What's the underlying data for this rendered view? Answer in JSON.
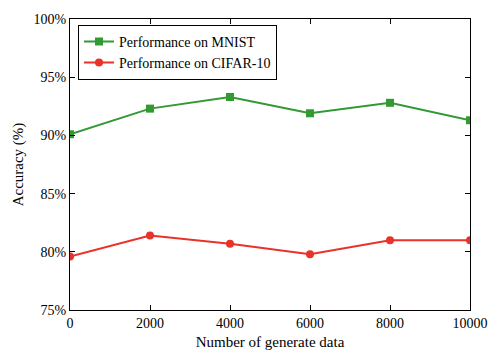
{
  "chart_data": {
    "type": "line",
    "x_label": "Number of generate data",
    "y_label": "Accuracy (%)",
    "x": [
      0,
      2000,
      4000,
      6000,
      8000,
      10000
    ],
    "series": [
      {
        "name": "Performance on MNIST",
        "color": "#339933",
        "marker": "square",
        "line_style": "solid",
        "values": [
          90.1,
          92.3,
          93.3,
          91.9,
          92.8,
          91.3
        ]
      },
      {
        "name": "Performance on CIFAR-10",
        "color": "#e8322a",
        "marker": "circle",
        "line_style": "solid",
        "values": [
          79.6,
          81.4,
          80.7,
          79.8,
          81.0,
          81.0
        ]
      }
    ],
    "xlim": [
      0,
      10000
    ],
    "xticks": [
      0,
      2000,
      4000,
      6000,
      8000,
      10000
    ],
    "ylim": [
      75,
      100
    ],
    "yticks": [
      {
        "value": 75,
        "label": "75%"
      },
      {
        "value": 80,
        "label": "80%"
      },
      {
        "value": 85,
        "label": "85%"
      },
      {
        "value": 90,
        "label": "90%"
      },
      {
        "value": 95,
        "label": "95%"
      },
      {
        "value": 100,
        "label": "100%"
      }
    ],
    "grid": false,
    "legend": "upper left"
  }
}
